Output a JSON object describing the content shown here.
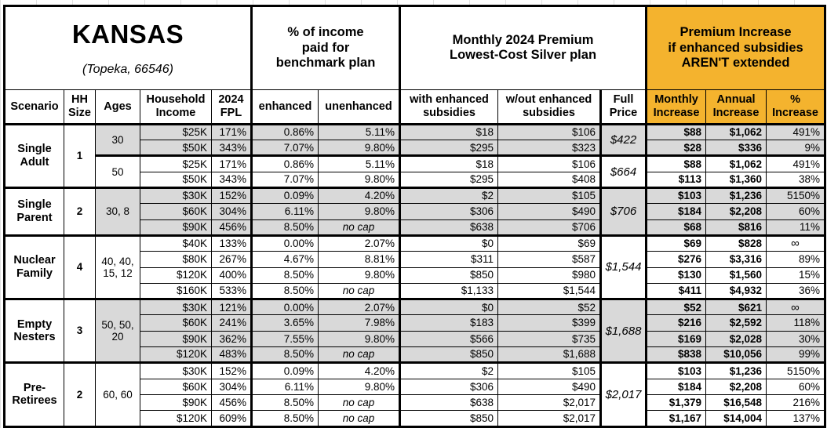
{
  "colors": {
    "accent_orange": "#F4B32E",
    "row_shade": "#D9D9D9",
    "border": "#000000",
    "background": "#FFFFFF",
    "gridline": "#E2E2E2"
  },
  "chart_data": {
    "type": "table",
    "region": {
      "title": "KANSAS",
      "subtitle": "(Topeka, 66546)"
    },
    "column_groups": [
      "% of income\npaid for\nbenchmark plan",
      "Monthly 2024 Premium\nLowest-Cost Silver plan",
      "Premium Increase\nif enhanced subsidies\nAREN'T extended"
    ],
    "columns": [
      "Scenario",
      "HH\nSize",
      "Ages",
      "Household\nIncome",
      "2024\nFPL",
      "enhanced",
      "unenhanced",
      "with enhanced\nsubsidies",
      "w/out enhanced\nsubsidies",
      "Full\nPrice",
      "Monthly\nIncrease",
      "Annual\nIncrease",
      "%\nIncrease"
    ],
    "groups": [
      {
        "scenario": "Single\nAdult",
        "hh_size": "1",
        "subgroups": [
          {
            "ages": "30",
            "shaded": true,
            "full_price": "$422",
            "rows": [
              {
                "income": "$25K",
                "fpl": "171%",
                "enhanced": "0.86%",
                "unenhanced": "5.11%",
                "with_sub": "$18",
                "wout_sub": "$106",
                "monthly": "$88",
                "annual": "$1,062",
                "pct": "491%"
              },
              {
                "income": "$50K",
                "fpl": "343%",
                "enhanced": "7.07%",
                "unenhanced": "9.80%",
                "with_sub": "$295",
                "wout_sub": "$323",
                "monthly": "$28",
                "annual": "$336",
                "pct": "9%"
              }
            ]
          },
          {
            "ages": "50",
            "shaded": false,
            "full_price": "$664",
            "rows": [
              {
                "income": "$25K",
                "fpl": "171%",
                "enhanced": "0.86%",
                "unenhanced": "5.11%",
                "with_sub": "$18",
                "wout_sub": "$106",
                "monthly": "$88",
                "annual": "$1,062",
                "pct": "491%"
              },
              {
                "income": "$50K",
                "fpl": "343%",
                "enhanced": "7.07%",
                "unenhanced": "9.80%",
                "with_sub": "$295",
                "wout_sub": "$408",
                "monthly": "$113",
                "annual": "$1,360",
                "pct": "38%"
              }
            ]
          }
        ]
      },
      {
        "scenario": "Single\nParent",
        "hh_size": "2",
        "subgroups": [
          {
            "ages": "30, 8",
            "shaded": true,
            "full_price": "$706",
            "rows": [
              {
                "income": "$30K",
                "fpl": "152%",
                "enhanced": "0.09%",
                "unenhanced": "4.20%",
                "with_sub": "$2",
                "wout_sub": "$105",
                "monthly": "$103",
                "annual": "$1,236",
                "pct": "5150%"
              },
              {
                "income": "$60K",
                "fpl": "304%",
                "enhanced": "6.11%",
                "unenhanced": "9.80%",
                "with_sub": "$306",
                "wout_sub": "$490",
                "monthly": "$184",
                "annual": "$2,208",
                "pct": "60%"
              },
              {
                "income": "$90K",
                "fpl": "456%",
                "enhanced": "8.50%",
                "unenhanced": "no cap",
                "with_sub": "$638",
                "wout_sub": "$706",
                "monthly": "$68",
                "annual": "$816",
                "pct": "11%"
              }
            ]
          }
        ]
      },
      {
        "scenario": "Nuclear\nFamily",
        "hh_size": "4",
        "subgroups": [
          {
            "ages": "40, 40,\n15, 12",
            "shaded": false,
            "full_price": "$1,544",
            "rows": [
              {
                "income": "$40K",
                "fpl": "133%",
                "enhanced": "0.00%",
                "unenhanced": "2.07%",
                "with_sub": "$0",
                "wout_sub": "$69",
                "monthly": "$69",
                "annual": "$828",
                "pct": "∞"
              },
              {
                "income": "$80K",
                "fpl": "267%",
                "enhanced": "4.67%",
                "unenhanced": "8.81%",
                "with_sub": "$311",
                "wout_sub": "$587",
                "monthly": "$276",
                "annual": "$3,316",
                "pct": "89%"
              },
              {
                "income": "$120K",
                "fpl": "400%",
                "enhanced": "8.50%",
                "unenhanced": "9.80%",
                "with_sub": "$850",
                "wout_sub": "$980",
                "monthly": "$130",
                "annual": "$1,560",
                "pct": "15%"
              },
              {
                "income": "$160K",
                "fpl": "533%",
                "enhanced": "8.50%",
                "unenhanced": "no cap",
                "with_sub": "$1,133",
                "wout_sub": "$1,544",
                "monthly": "$411",
                "annual": "$4,932",
                "pct": "36%"
              }
            ]
          }
        ]
      },
      {
        "scenario": "Empty\nNesters",
        "hh_size": "3",
        "subgroups": [
          {
            "ages": "50, 50,\n20",
            "shaded": true,
            "full_price": "$1,688",
            "rows": [
              {
                "income": "$30K",
                "fpl": "121%",
                "enhanced": "0.00%",
                "unenhanced": "2.07%",
                "with_sub": "$0",
                "wout_sub": "$52",
                "monthly": "$52",
                "annual": "$621",
                "pct": "∞"
              },
              {
                "income": "$60K",
                "fpl": "241%",
                "enhanced": "3.65%",
                "unenhanced": "7.98%",
                "with_sub": "$183",
                "wout_sub": "$399",
                "monthly": "$216",
                "annual": "$2,592",
                "pct": "118%"
              },
              {
                "income": "$90K",
                "fpl": "362%",
                "enhanced": "7.55%",
                "unenhanced": "9.80%",
                "with_sub": "$566",
                "wout_sub": "$735",
                "monthly": "$169",
                "annual": "$2,028",
                "pct": "30%"
              },
              {
                "income": "$120K",
                "fpl": "483%",
                "enhanced": "8.50%",
                "unenhanced": "no cap",
                "with_sub": "$850",
                "wout_sub": "$1,688",
                "monthly": "$838",
                "annual": "$10,056",
                "pct": "99%"
              }
            ]
          }
        ]
      },
      {
        "scenario": "Pre-\nRetirees",
        "hh_size": "2",
        "subgroups": [
          {
            "ages": "60, 60",
            "shaded": false,
            "full_price": "$2,017",
            "rows": [
              {
                "income": "$30K",
                "fpl": "152%",
                "enhanced": "0.09%",
                "unenhanced": "4.20%",
                "with_sub": "$2",
                "wout_sub": "$105",
                "monthly": "$103",
                "annual": "$1,236",
                "pct": "5150%"
              },
              {
                "income": "$60K",
                "fpl": "304%",
                "enhanced": "6.11%",
                "unenhanced": "9.80%",
                "with_sub": "$306",
                "wout_sub": "$490",
                "monthly": "$184",
                "annual": "$2,208",
                "pct": "60%"
              },
              {
                "income": "$90K",
                "fpl": "456%",
                "enhanced": "8.50%",
                "unenhanced": "no cap",
                "with_sub": "$638",
                "wout_sub": "$2,017",
                "monthly": "$1,379",
                "annual": "$16,548",
                "pct": "216%"
              },
              {
                "income": "$120K",
                "fpl": "609%",
                "enhanced": "8.50%",
                "unenhanced": "no cap",
                "with_sub": "$850",
                "wout_sub": "$2,017",
                "monthly": "$1,167",
                "annual": "$14,004",
                "pct": "137%"
              }
            ]
          }
        ]
      }
    ]
  }
}
